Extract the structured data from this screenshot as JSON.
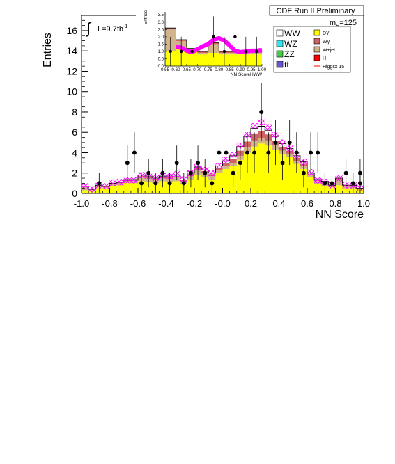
{
  "chart_data": {
    "type": "bar",
    "header": "CDF Run II Preliminary",
    "mass_label": "m",
    "mass_sub": "H",
    "mass_value": "=125",
    "lumi_prefix": "L=9.7fb",
    "lumi_exp": "-1",
    "xlabel": "NN Score",
    "ylabel": "Entries",
    "xlim": [
      -1.0,
      1.0
    ],
    "ylim": [
      0,
      17.5
    ],
    "x_ticks": [
      "-1.0",
      "-0.8",
      "-0.6",
      "-0.4",
      "-0.2",
      "-0.0",
      "0.2",
      "0.4",
      "0.6",
      "0.8",
      "1.0"
    ],
    "y_ticks": [
      "0",
      "2",
      "4",
      "6",
      "8",
      "10",
      "12",
      "14",
      "16"
    ],
    "bin_edges_start": -1.0,
    "bin_width": 0.05,
    "legend": [
      {
        "label": "WW",
        "color": "#ffffff"
      },
      {
        "label": "WZ",
        "color": "#33e5ee"
      },
      {
        "label": "ZZ",
        "color": "#44cc44"
      },
      {
        "label": "tt̄",
        "color": "#6655cc"
      },
      {
        "label": "DY",
        "color": "#ffff00"
      },
      {
        "label": "Wγ",
        "color": "#cc6666"
      },
      {
        "label": "W+jet",
        "color": "#d2b48c"
      },
      {
        "label": "H",
        "color": "#ff0000"
      },
      {
        "label": "Higgsx 15",
        "color": "#ff0000",
        "line": true
      }
    ],
    "series": [
      {
        "name": "DY",
        "color": "#ffff00",
        "values": [
          0.3,
          0.2,
          0.6,
          0.5,
          0.7,
          0.8,
          1.1,
          1.0,
          1.2,
          1.1,
          1.0,
          1.2,
          1.1,
          1.2,
          0.9,
          1.3,
          1.8,
          1.6,
          1.3,
          2.0,
          2.4,
          2.7,
          3.3,
          4.0,
          4.6,
          4.9,
          4.7,
          4.3,
          3.9,
          3.6,
          2.9,
          2.4,
          1.6,
          0.9,
          0.7,
          0.6,
          0.8,
          0.5,
          0.5,
          0.4
        ]
      },
      {
        "name": "W+jet",
        "color": "#d2b48c",
        "values": [
          0.4,
          0.2,
          0.2,
          0.1,
          0.2,
          0.2,
          0.1,
          0.1,
          0.4,
          0.4,
          0.3,
          0.3,
          0.3,
          0.4,
          0.3,
          0.4,
          0.5,
          0.4,
          0.4,
          0.3,
          0.3,
          0.3,
          0.4,
          0.5,
          0.6,
          0.5,
          0.5,
          0.4,
          0.3,
          0.3,
          0.3,
          0.3,
          0.2,
          0.2,
          0.3,
          0.1,
          0.5,
          0.2,
          0.2,
          0.1
        ]
      },
      {
        "name": "Wγ",
        "color": "#cc6666",
        "values": [
          0.0,
          0.0,
          0.0,
          0.1,
          0.1,
          0.1,
          0.1,
          0.1,
          0.1,
          0.1,
          0.1,
          0.1,
          0.2,
          0.1,
          0.1,
          0.2,
          0.2,
          0.2,
          0.2,
          0.2,
          0.3,
          0.4,
          0.5,
          0.6,
          0.7,
          0.7,
          0.6,
          0.5,
          0.4,
          0.3,
          0.3,
          0.2,
          0.1,
          0.1,
          0.1,
          0.1,
          0.2,
          0.1,
          0.1,
          0.0
        ]
      },
      {
        "name": "WW",
        "color": "#ffffff",
        "values": [
          0.0,
          0.0,
          0.0,
          0.0,
          0.0,
          0.0,
          0.0,
          0.1,
          0.1,
          0.1,
          0.1,
          0.1,
          0.1,
          0.1,
          0.1,
          0.1,
          0.1,
          0.1,
          0.1,
          0.2,
          0.2,
          0.3,
          0.4,
          0.5,
          0.5,
          0.5,
          0.4,
          0.4,
          0.3,
          0.2,
          0.2,
          0.2,
          0.1,
          0.1,
          0.1,
          0.0,
          0.0,
          0.0,
          0.0,
          0.0
        ]
      }
    ],
    "signal_band": {
      "name": "Higgsx 15",
      "color": "#ff00ff",
      "values": [
        0.7,
        0.4,
        0.8,
        0.7,
        1.0,
        1.1,
        1.3,
        1.3,
        1.8,
        1.7,
        1.5,
        1.7,
        1.7,
        1.9,
        1.4,
        2.0,
        2.6,
        2.3,
        2.0,
        2.7,
        3.3,
        3.8,
        4.7,
        5.7,
        6.6,
        7.0,
        6.5,
        5.7,
        5.0,
        4.4,
        3.7,
        3.1,
        2.1,
        1.3,
        1.1,
        0.8,
        1.5,
        0.8,
        0.8,
        0.5
      ],
      "width": 0.6
    },
    "data_points": [
      {
        "x": -0.875,
        "y": 1,
        "err": 1.0
      },
      {
        "x": -0.675,
        "y": 3,
        "err": 1.7
      },
      {
        "x": -0.625,
        "y": 4,
        "err": 2.0
      },
      {
        "x": -0.575,
        "y": 1,
        "err": 1.0
      },
      {
        "x": -0.525,
        "y": 2,
        "err": 1.4
      },
      {
        "x": -0.475,
        "y": 1,
        "err": 1.0
      },
      {
        "x": -0.425,
        "y": 2,
        "err": 1.4
      },
      {
        "x": -0.375,
        "y": 1,
        "err": 1.0
      },
      {
        "x": -0.325,
        "y": 3,
        "err": 1.7
      },
      {
        "x": -0.275,
        "y": 1,
        "err": 1.0
      },
      {
        "x": -0.225,
        "y": 2,
        "err": 1.4
      },
      {
        "x": -0.175,
        "y": 3,
        "err": 1.7
      },
      {
        "x": -0.125,
        "y": 2,
        "err": 1.4
      },
      {
        "x": -0.075,
        "y": 1,
        "err": 1.0
      },
      {
        "x": -0.025,
        "y": 4,
        "err": 2.0
      },
      {
        "x": 0.025,
        "y": 4,
        "err": 2.0
      },
      {
        "x": 0.075,
        "y": 2,
        "err": 1.4
      },
      {
        "x": 0.125,
        "y": 3,
        "err": 1.7
      },
      {
        "x": 0.175,
        "y": 4,
        "err": 2.0
      },
      {
        "x": 0.225,
        "y": 4,
        "err": 2.0
      },
      {
        "x": 0.275,
        "y": 8,
        "err": 2.8
      },
      {
        "x": 0.325,
        "y": 4,
        "err": 2.0
      },
      {
        "x": 0.375,
        "y": 5,
        "err": 2.2
      },
      {
        "x": 0.425,
        "y": 3,
        "err": 1.7
      },
      {
        "x": 0.475,
        "y": 5,
        "err": 2.2
      },
      {
        "x": 0.525,
        "y": 4,
        "err": 2.0
      },
      {
        "x": 0.575,
        "y": 2,
        "err": 1.4
      },
      {
        "x": 0.625,
        "y": 4,
        "err": 2.0
      },
      {
        "x": 0.675,
        "y": 4,
        "err": 2.0
      },
      {
        "x": 0.725,
        "y": 1,
        "err": 1.0
      },
      {
        "x": 0.775,
        "y": 1,
        "err": 1.0
      },
      {
        "x": 0.875,
        "y": 2,
        "err": 1.4
      },
      {
        "x": 0.925,
        "y": 1,
        "err": 1.0
      },
      {
        "x": 0.975,
        "y": 2,
        "err": 1.4
      },
      {
        "x": 0.975,
        "y": 1,
        "err": 1.0
      }
    ],
    "inset": {
      "xlabel": "NN ScoreHWW",
      "ylabel": "Entries",
      "xlim": [
        0.55,
        1.0
      ],
      "ylim": [
        0,
        3.7
      ],
      "x_ticks": [
        "0.55",
        "0.60",
        "0.65",
        "0.70",
        "0.75",
        "0.80",
        "0.85",
        "0.90",
        "0.95",
        "1.00"
      ],
      "y_ticks": [
        "0.0",
        "0.5",
        "1.0",
        "1.5",
        "2.0",
        "2.5",
        "3.0",
        "3.5"
      ],
      "bin_edges_start": 0.55,
      "bin_width": 0.05,
      "dy": [
        1.0,
        1.3,
        1.0,
        0.8,
        0.9,
        0.8,
        0.8,
        0.8,
        0.8
      ],
      "wjet": [
        1.5,
        0.4,
        0.1,
        0.1,
        0.6,
        0.1,
        0.1,
        0.1,
        0.1
      ],
      "wg": [
        0.1,
        0.1,
        0.1,
        0.1,
        0.1,
        0.1,
        0.1,
        0.1,
        0.1
      ],
      "ww": [
        0.0,
        0.0,
        0.0,
        0.0,
        0.0,
        0.0,
        0.0,
        0.0,
        0.0
      ],
      "signal_x": [
        0.6,
        0.625,
        0.65,
        0.675,
        0.7,
        0.725,
        0.75,
        0.775,
        0.8,
        0.825,
        0.85,
        0.875,
        0.9,
        0.925,
        0.95,
        0.975,
        1.0
      ],
      "signal_y": [
        1.3,
        1.25,
        1.05,
        0.95,
        1.15,
        1.35,
        1.5,
        1.8,
        1.9,
        1.75,
        1.4,
        1.05,
        0.95,
        1.0,
        1.05,
        1.05,
        1.1
      ],
      "data_points": [
        {
          "x": 0.575,
          "y": 1,
          "err": 1.0
        },
        {
          "x": 0.625,
          "y": 1,
          "err": 1.0
        },
        {
          "x": 0.675,
          "y": 1,
          "err": 1.0
        },
        {
          "x": 0.775,
          "y": 2,
          "err": 1.4
        },
        {
          "x": 0.825,
          "y": 1,
          "err": 1.0
        },
        {
          "x": 0.875,
          "y": 2,
          "err": 1.4
        },
        {
          "x": 0.925,
          "y": 1,
          "err": 1.0
        },
        {
          "x": 0.975,
          "y": 1,
          "err": 1.0
        }
      ]
    }
  }
}
